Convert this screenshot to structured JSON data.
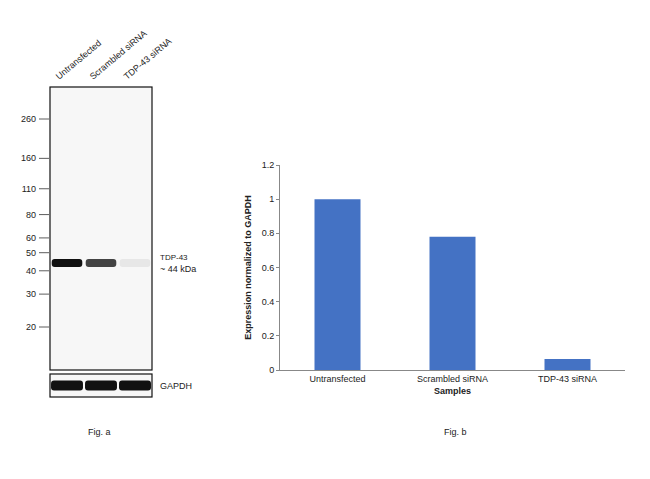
{
  "blot": {
    "lanes": [
      "Untransfected",
      "Scrambled siRNA",
      "TDP-43 siRNA"
    ],
    "markers": [
      260,
      160,
      110,
      80,
      60,
      50,
      40,
      30,
      20
    ],
    "target": {
      "name": "TDP-43",
      "size_label": "~ 44 kDa",
      "size_kda": 44
    },
    "loading_control": "GAPDH"
  },
  "captions": [
    "Fig. a",
    "Fig. b"
  ],
  "chart_data": {
    "type": "bar",
    "categories": [
      "Untransfected",
      "Scrambled siRNA",
      "TDP-43 siRNA"
    ],
    "values": [
      1.0,
      0.78,
      0.065
    ],
    "color": "#4472c4",
    "x_label": "Samples",
    "y_label": "Expression normalized to GAPDH",
    "ylim": [
      0,
      1.2
    ],
    "yticks": [
      0,
      0.2,
      0.4,
      0.6,
      0.8,
      1,
      1.2
    ],
    "grid": false
  }
}
